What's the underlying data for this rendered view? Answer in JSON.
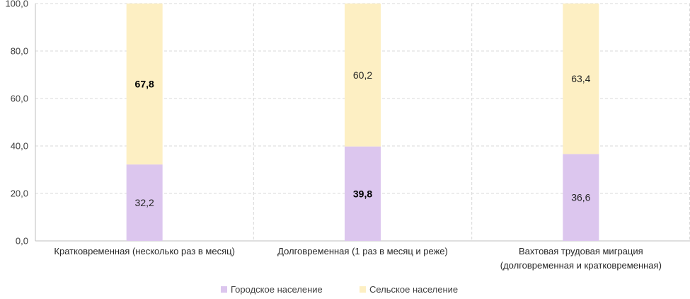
{
  "chart_data": {
    "type": "bar",
    "stacked": true,
    "categories": [
      [
        "Кратковременная (несколько раз в месяц)"
      ],
      [
        "Долговременная (1 раз в месяц и реже)"
      ],
      [
        "Вахтовая трудовая миграция",
        "(долговременная и кратковременная)"
      ]
    ],
    "series": [
      {
        "name": "Городское население",
        "color": "#dcc6ee",
        "values": [
          32.2,
          39.8,
          36.6
        ],
        "labels": [
          "32,2",
          "39,8",
          "36,6"
        ],
        "bold": [
          false,
          true,
          false
        ]
      },
      {
        "name": "Сельское население",
        "color": "#fdefc3",
        "values": [
          67.8,
          60.2,
          63.4
        ],
        "labels": [
          "67,8",
          "60,2",
          "63,4"
        ],
        "bold": [
          true,
          false,
          false
        ]
      }
    ],
    "ylim": [
      0,
      100
    ],
    "yticks": [
      "0,0",
      "20,0",
      "40,0",
      "60,0",
      "80,0",
      "100,0"
    ],
    "grid": true,
    "legend": "bottom"
  }
}
